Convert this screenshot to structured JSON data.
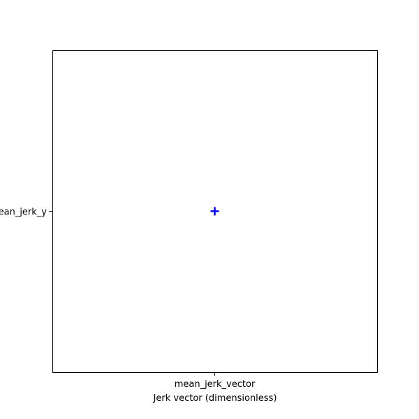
{
  "chart_data": {
    "type": "scatter",
    "xlabel": "Jerk vector (dimensionless)",
    "ylabel": "",
    "x_categories": [
      "mean_jerk_vector"
    ],
    "y_categories": [
      "mean_jerk_y"
    ],
    "points": [
      {
        "x": "mean_jerk_vector",
        "y": "mean_jerk_y"
      }
    ],
    "marker": "plus",
    "color": "#0000ff",
    "grid": false,
    "legend": "none"
  }
}
